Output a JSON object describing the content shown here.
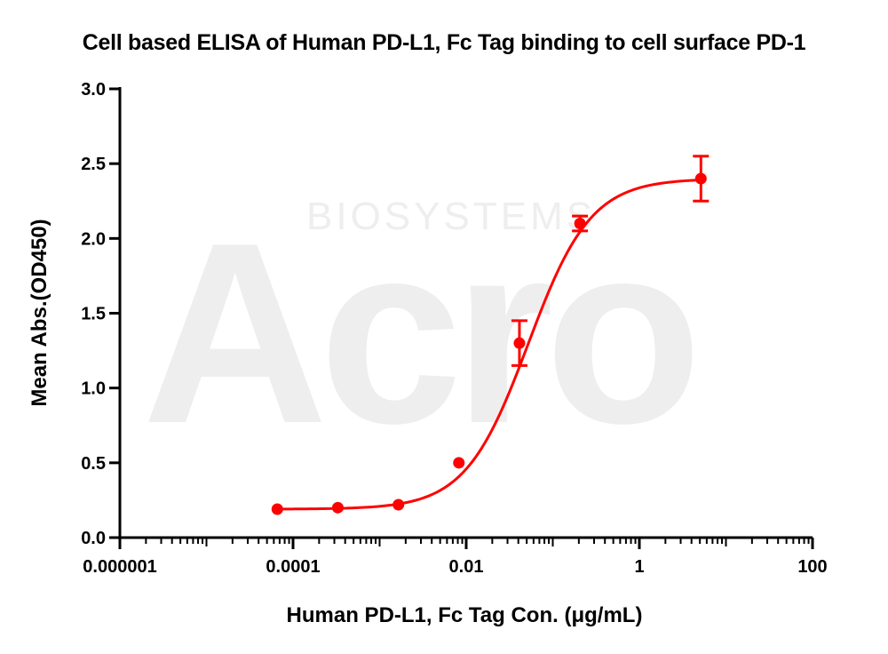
{
  "chart_data": {
    "type": "scatter",
    "title": "Cell based ELISA of Human PD-L1, Fc Tag binding to cell surface PD-1",
    "xlabel": "Human PD-L1, Fc Tag Con. (μg/mL)",
    "ylabel": "Mean Abs.(OD450)",
    "x_scale": "log10",
    "xlim": [
      1e-06,
      100
    ],
    "ylim": [
      0,
      3.0
    ],
    "x_ticks": [
      1e-06,
      0.0001,
      0.01,
      1,
      100
    ],
    "x_tick_labels": [
      "0.000001",
      "0.0001",
      "0.01",
      "1",
      "100"
    ],
    "y_ticks": [
      0,
      0.5,
      1.0,
      1.5,
      2.0,
      2.5,
      3.0
    ],
    "y_tick_labels": [
      "0.0",
      "0.5",
      "1.0",
      "1.5",
      "2.0",
      "2.5",
      "3.0"
    ],
    "grid": false,
    "legend": "none",
    "series": [
      {
        "color": "#ff0000",
        "points": [
          {
            "x": 6.58e-05,
            "y": 0.19,
            "err": 0.0
          },
          {
            "x": 0.000329,
            "y": 0.2,
            "err": 0.0
          },
          {
            "x": 0.00165,
            "y": 0.22,
            "err": 0.0
          },
          {
            "x": 0.00823,
            "y": 0.5,
            "err": 0.0
          },
          {
            "x": 0.0412,
            "y": 1.3,
            "err": 0.15
          },
          {
            "x": 0.206,
            "y": 2.1,
            "err": 0.05
          },
          {
            "x": 5.14,
            "y": 2.4,
            "err": 0.15
          }
        ],
        "fit": {
          "model": "4PL",
          "bottom": 0.19,
          "top": 2.4,
          "ec50": 0.052,
          "hill": 1.2
        }
      }
    ],
    "watermark": {
      "logo_text": "Acro",
      "sub_text": "BIOSYSTEMS"
    }
  }
}
